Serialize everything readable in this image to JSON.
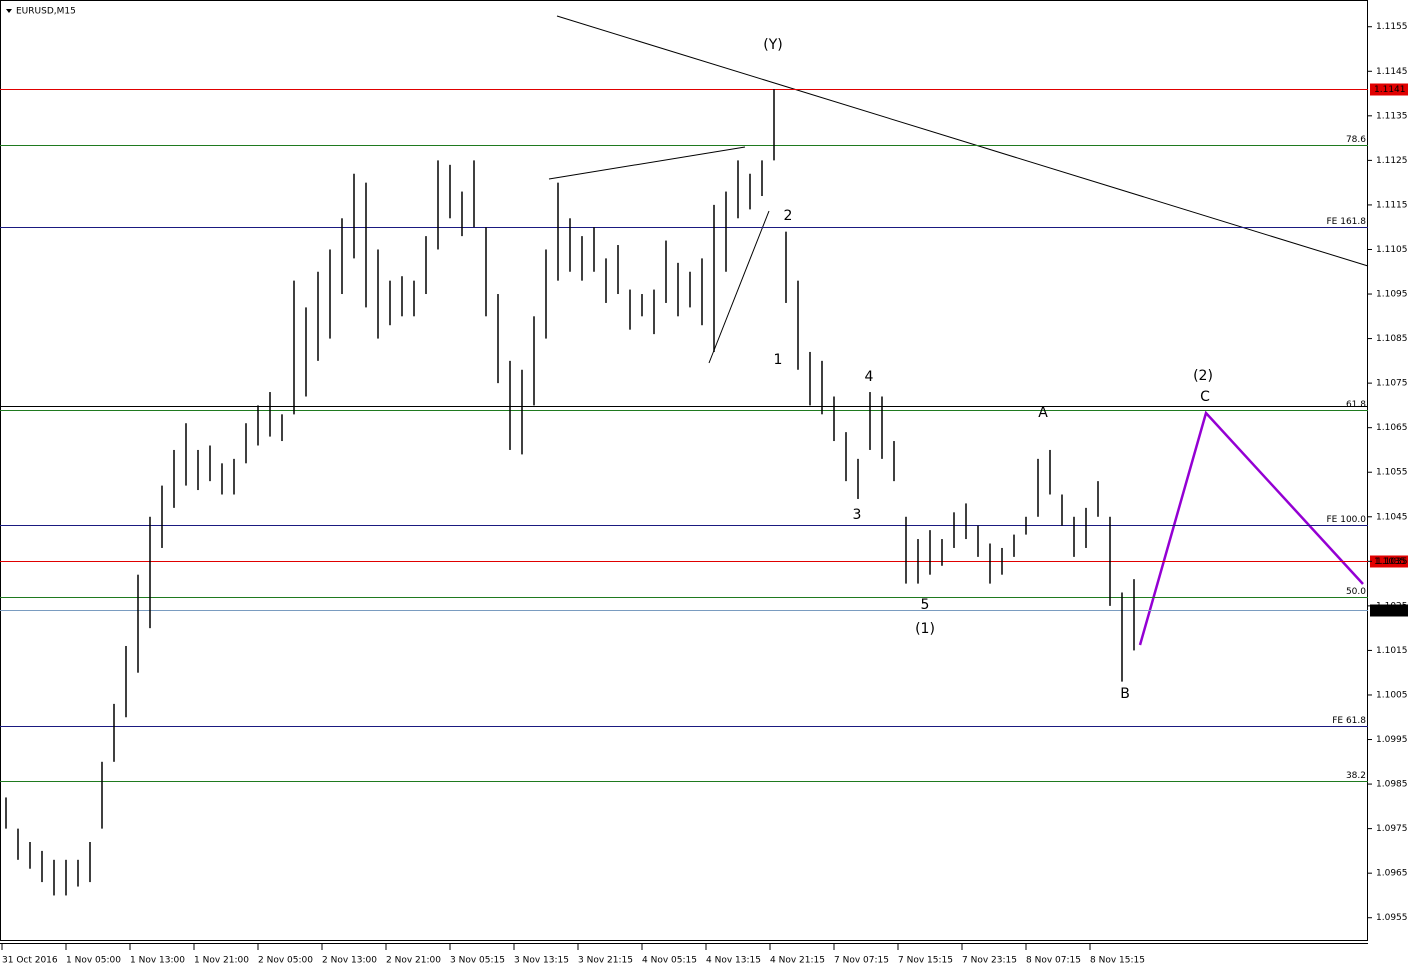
{
  "chart_data": {
    "type": "ohlc",
    "title": "EURUSD,M15",
    "xlim": [
      -1,
      683
    ],
    "ylim": [
      1.095,
      1.1161
    ],
    "xticks": [
      {
        "value": 0,
        "label": "31 Oct 2016"
      },
      {
        "value": 32,
        "label": "1 Nov 05:00"
      },
      {
        "value": 64,
        "label": "1 Nov 13:00"
      },
      {
        "value": 96,
        "label": "1 Nov 21:00"
      },
      {
        "value": 128,
        "label": "2 Nov 05:00"
      },
      {
        "value": 160,
        "label": "2 Nov 13:00"
      },
      {
        "value": 192,
        "label": "2 Nov 21:00"
      },
      {
        "value": 224,
        "label": "3 Nov 05:15"
      },
      {
        "value": 256,
        "label": "3 Nov 13:15"
      },
      {
        "value": 288,
        "label": "3 Nov 21:15"
      },
      {
        "value": 320,
        "label": "4 Nov 05:15"
      },
      {
        "value": 352,
        "label": "4 Nov 13:15"
      },
      {
        "value": 384,
        "label": "4 Nov 21:15"
      },
      {
        "value": 416,
        "label": "7 Nov 07:15"
      },
      {
        "value": 448,
        "label": "7 Nov 15:15"
      },
      {
        "value": 480,
        "label": "7 Nov 23:15"
      },
      {
        "value": 512,
        "label": "8 Nov 07:15"
      },
      {
        "value": 544,
        "label": "8 Nov 15:15"
      }
    ],
    "yticks": [
      1.0955,
      1.0965,
      1.0975,
      1.0985,
      1.0995,
      1.1005,
      1.1015,
      1.1025,
      1.1035,
      1.1045,
      1.1055,
      1.1065,
      1.1075,
      1.1085,
      1.1095,
      1.1105,
      1.1115,
      1.1125,
      1.1135,
      1.1145,
      1.1155
    ],
    "series": [
      {
        "color": "#000000",
        "x": [
          2,
          8,
          14,
          20,
          26,
          32,
          38,
          44,
          50,
          56,
          62,
          68,
          74,
          80,
          86,
          92,
          98,
          104,
          110,
          116,
          122,
          128,
          134,
          140,
          146,
          152,
          158,
          164,
          170,
          176,
          182,
          188,
          194,
          200,
          206,
          212,
          218,
          224,
          230,
          236,
          242,
          248,
          254,
          260,
          266,
          272,
          278,
          284,
          290,
          296,
          302,
          308,
          314,
          320,
          326,
          332,
          338,
          344,
          350,
          356,
          362,
          368,
          374,
          380,
          386,
          392,
          398,
          404,
          410,
          416,
          422,
          428,
          434,
          440,
          446,
          452,
          458,
          464,
          470,
          476,
          482,
          488,
          494,
          500,
          506,
          512,
          518,
          524,
          530,
          536,
          542,
          548,
          554,
          560,
          566
        ],
        "high": [
          1.0982,
          1.0975,
          1.0972,
          1.097,
          1.0968,
          1.0968,
          1.0968,
          1.0972,
          1.099,
          1.1003,
          1.1016,
          1.1032,
          1.1045,
          1.1052,
          1.106,
          1.1066,
          1.106,
          1.1061,
          1.1057,
          1.1058,
          1.1066,
          1.107,
          1.1073,
          1.1068,
          1.1098,
          1.1092,
          1.11,
          1.1105,
          1.1112,
          1.1122,
          1.112,
          1.1105,
          1.1098,
          1.1099,
          1.1098,
          1.1108,
          1.1125,
          1.1124,
          1.1118,
          1.1125,
          1.111,
          1.1095,
          1.108,
          1.1078,
          1.109,
          1.1105,
          1.112,
          1.1112,
          1.1108,
          1.111,
          1.1103,
          1.1106,
          1.1096,
          1.1095,
          1.1096,
          1.1107,
          1.1102,
          1.11,
          1.1103,
          1.1115,
          1.1118,
          1.1125,
          1.1122,
          1.1125,
          1.1141,
          1.1109,
          1.1098,
          1.1082,
          1.108,
          1.1072,
          1.1064,
          1.1058,
          1.1073,
          1.1072,
          1.1062,
          1.1045,
          1.104,
          1.1042,
          1.104,
          1.1046,
          1.1048,
          1.1043,
          1.1039,
          1.1038,
          1.1041,
          1.1045,
          1.1058,
          1.106,
          1.105,
          1.1045,
          1.1047,
          1.1053,
          1.1045,
          1.1028,
          1.1031
        ],
        "low": [
          1.0975,
          1.0968,
          1.0966,
          1.0963,
          1.096,
          1.096,
          1.0962,
          1.0963,
          1.0975,
          1.099,
          1.1,
          1.101,
          1.102,
          1.1038,
          1.1047,
          1.1052,
          1.1051,
          1.1053,
          1.105,
          1.105,
          1.1057,
          1.1061,
          1.1063,
          1.1062,
          1.1068,
          1.1072,
          1.108,
          1.1085,
          1.1095,
          1.1103,
          1.1092,
          1.1085,
          1.1088,
          1.109,
          1.109,
          1.1095,
          1.1105,
          1.1112,
          1.1108,
          1.111,
          1.109,
          1.1075,
          1.106,
          1.1059,
          1.107,
          1.1085,
          1.1098,
          1.11,
          1.1098,
          1.11,
          1.1093,
          1.1095,
          1.1087,
          1.109,
          1.1086,
          1.1093,
          1.109,
          1.1092,
          1.1088,
          1.1082,
          1.11,
          1.1112,
          1.1114,
          1.1117,
          1.1125,
          1.1093,
          1.1078,
          1.107,
          1.1068,
          1.1062,
          1.1053,
          1.1049,
          1.106,
          1.1058,
          1.1053,
          1.103,
          1.103,
          1.1032,
          1.1034,
          1.1038,
          1.104,
          1.1036,
          1.103,
          1.1032,
          1.1036,
          1.1041,
          1.1045,
          1.105,
          1.1043,
          1.1036,
          1.1038,
          1.1045,
          1.1025,
          1.1008,
          1.1015
        ]
      }
    ],
    "levels": [
      {
        "value": 1.1141,
        "color": "#e00000",
        "tag_color": "#e00000"
      },
      {
        "value": 1.11285,
        "color": "#1f7a1f",
        "label": "78.6"
      },
      {
        "value": 1.111,
        "color": "#1a1a80",
        "label": "FE 161.8"
      },
      {
        "value": 1.10698,
        "color": "#000000"
      },
      {
        "value": 1.10689,
        "color": "#1f7a1f",
        "label": "61.8"
      },
      {
        "value": 1.10431,
        "color": "#1a1a80",
        "label": "FE 100.0"
      },
      {
        "value": 1.1035,
        "color": "#e00000",
        "tag_color": "#e00000"
      },
      {
        "value": 1.10271,
        "color": "#1f7a1f",
        "label": "50.0"
      },
      {
        "value": 1.1024,
        "color": "#7a9cc0",
        "tag_color": "#000000"
      },
      {
        "value": 1.0998,
        "color": "#1a1a80",
        "label": "FE 61.8"
      },
      {
        "value": 1.09856,
        "color": "#1f7a1f",
        "label": "38.2"
      }
    ],
    "annotations": [
      {
        "text": "(Y)",
        "color": "#1a1a80"
      },
      {
        "text": "1",
        "color": "#e00000"
      },
      {
        "text": "2",
        "color": "#e00000"
      },
      {
        "text": "3",
        "color": "#e00000"
      },
      {
        "text": "4",
        "color": "#e00000"
      },
      {
        "text": "5",
        "color": "#e00000"
      },
      {
        "text": "(1)",
        "color": "#1a1a80"
      },
      {
        "text": "A",
        "color": "#e00000"
      },
      {
        "text": "B",
        "color": "#e00000"
      },
      {
        "text": "C",
        "color": "#e00000"
      },
      {
        "text": "(2)",
        "color": "#1a1a80"
      }
    ]
  }
}
